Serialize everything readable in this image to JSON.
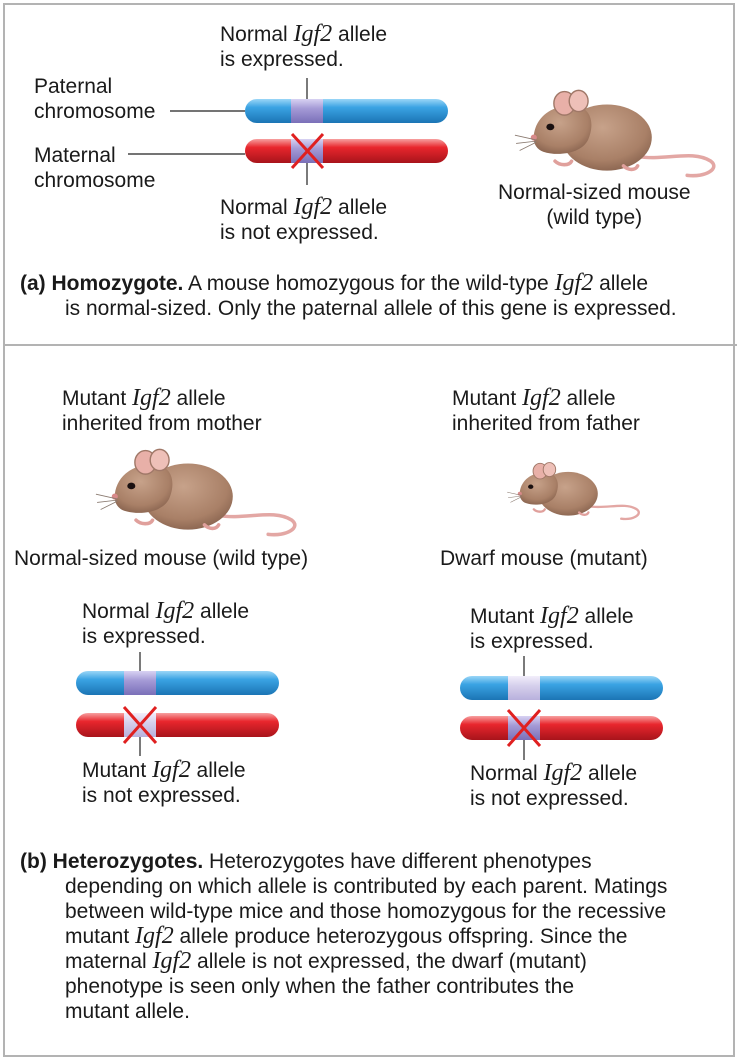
{
  "gene": "Igf2",
  "colors": {
    "paternal_chromosome": "#3aa3e3",
    "maternal_chromosome": "#e8262d",
    "allele_band": "#a49ad6",
    "mutant_band": "#d6d0ec",
    "cross_mark": "#e02020",
    "mouse_fur": "#b08a72",
    "panel_border": "#b3b3b3"
  },
  "panel_a": {
    "top_label_pre": "Normal ",
    "top_label_post": " allele",
    "top_label_line2": "is expressed.",
    "paternal_line1": "Paternal",
    "paternal_line2": "chromosome",
    "maternal_line1": "Maternal",
    "maternal_line2": "chromosome",
    "bottom_label_pre": "Normal ",
    "bottom_label_post": " allele",
    "bottom_label_line2": "is not expressed.",
    "mouse_label_line1": "Normal-sized mouse",
    "mouse_label_line2": "(wild type)",
    "caption_letter": "(a)",
    "caption_bold": "Homozygote.",
    "caption_pre": " A mouse homozygous for the wild-type ",
    "caption_post": " allele",
    "caption_line2": "is normal-sized. Only the paternal allele of this gene is expressed."
  },
  "panel_b": {
    "left": {
      "title_pre": "Mutant ",
      "title_post": " allele",
      "title_line2": "inherited from mother",
      "mouse_label": "Normal-sized mouse (wild type)",
      "top_label_pre": "Normal ",
      "top_label_post": " allele",
      "top_label_line2": "is expressed.",
      "bottom_label_pre": "Mutant ",
      "bottom_label_post": " allele",
      "bottom_label_line2": "is not expressed."
    },
    "right": {
      "title_pre": "Mutant ",
      "title_post": " allele",
      "title_line2": "inherited from father",
      "mouse_label": "Dwarf mouse (mutant)",
      "top_label_pre": "Mutant ",
      "top_label_post": " allele",
      "top_label_line2": "is expressed.",
      "bottom_label_pre": "Normal ",
      "bottom_label_post": " allele",
      "bottom_label_line2": "is not expressed."
    },
    "caption_letter": "(b)",
    "caption_bold": "Heterozygotes.",
    "caption_line1": " Heterozygotes have different phenotypes",
    "caption_line2": "depending on which allele is contributed by each parent. Matings",
    "caption_line3": "between wild-type mice and those homozygous for the recessive",
    "caption_line4_pre": "mutant ",
    "caption_line4_post": " allele produce heterozygous offspring. Since the",
    "caption_line5_pre": "maternal ",
    "caption_line5_post": " allele is not expressed, the dwarf (mutant)",
    "caption_line6": "phenotype is seen only when the father contributes the",
    "caption_line7": "mutant allele."
  }
}
